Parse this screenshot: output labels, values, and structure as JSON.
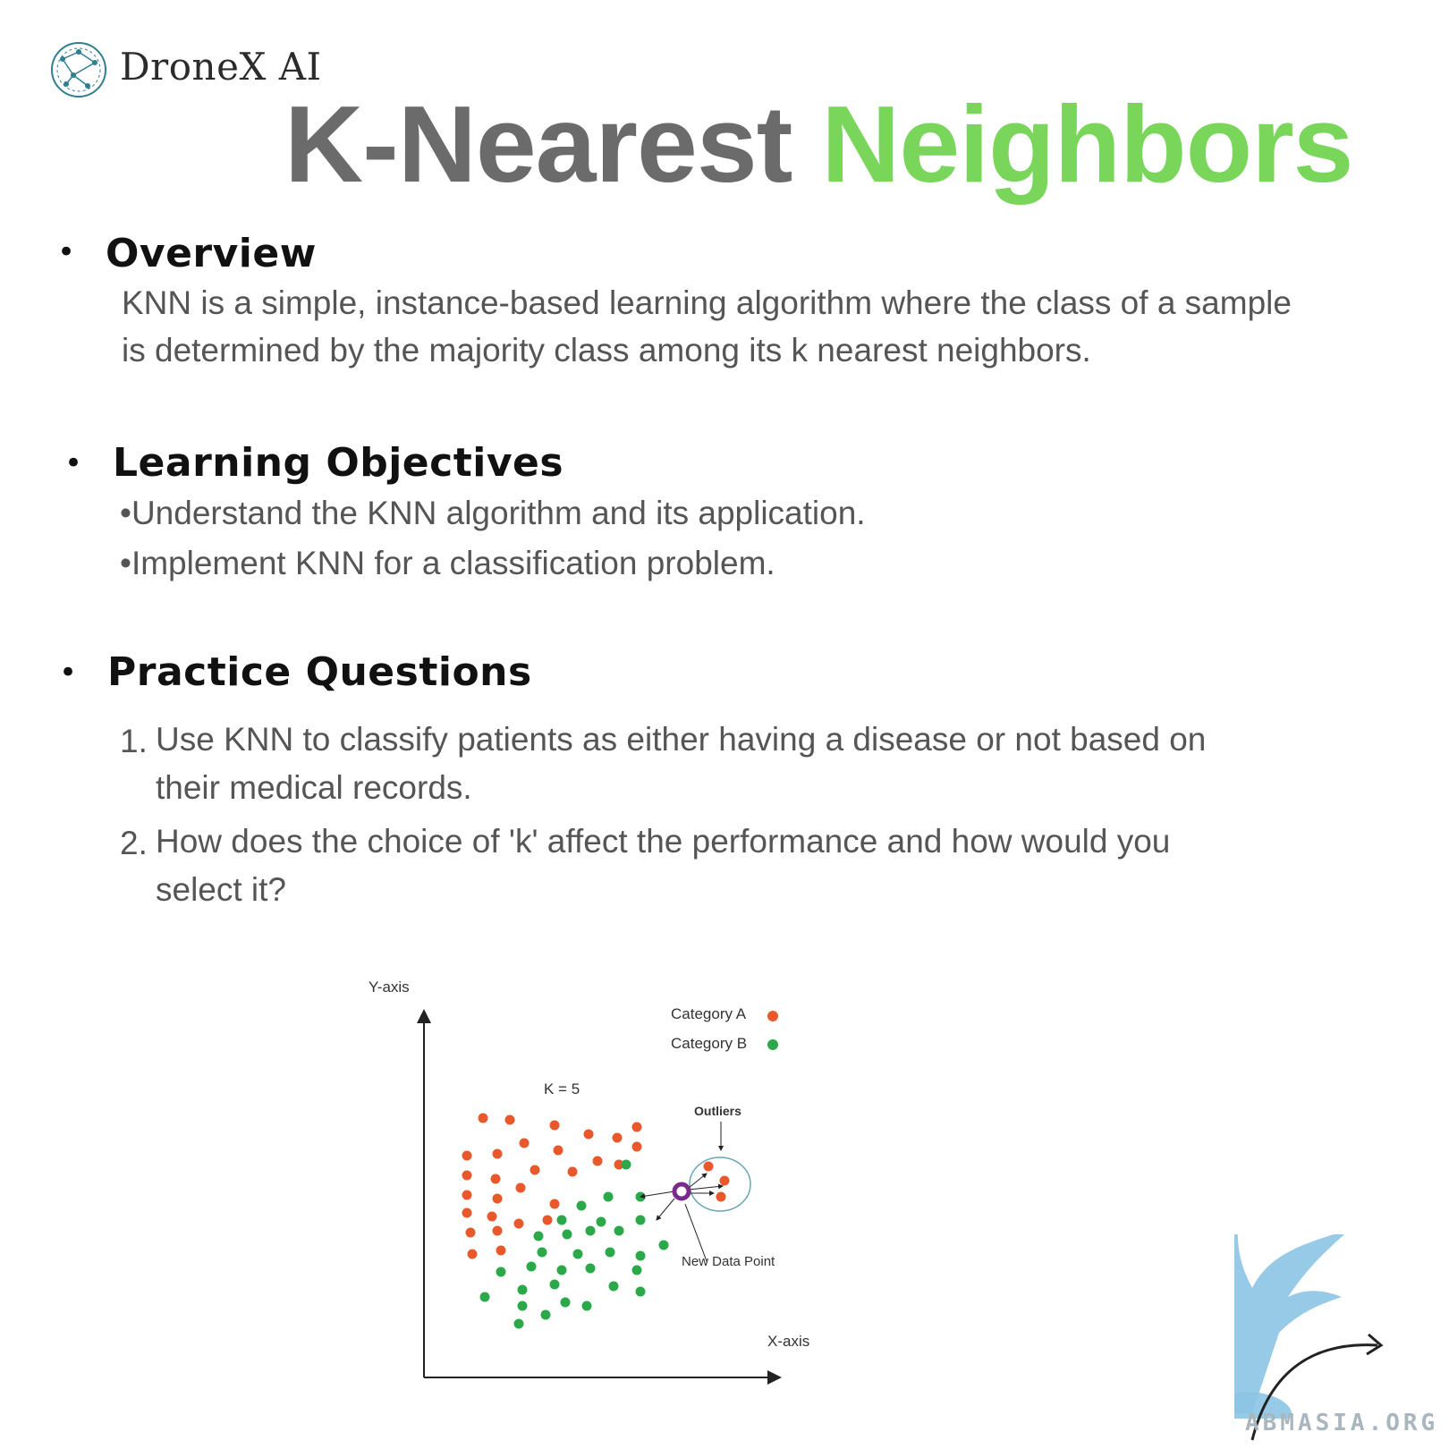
{
  "brand": {
    "name": "DroneX AI",
    "logo_icon": "network-globe-icon"
  },
  "title": {
    "part1": "K-Nearest",
    "part2": "Neighbors",
    "part1_color": "#6b6b6b",
    "part2_color": "#79d65a"
  },
  "sections": {
    "overview": {
      "heading": "Overview",
      "lines": [
        "KNN is a simple, instance-based learning algorithm where the class of a sample",
        "is determined by the majority class among its k nearest neighbors."
      ]
    },
    "objectives": {
      "heading": "Learning Objectives",
      "items": [
        "•Understand the KNN algorithm and its application.",
        "•Implement KNN for a classification problem."
      ]
    },
    "practice": {
      "heading": "Practice Questions",
      "questions": [
        {
          "number": "1.",
          "lines": [
            "Use KNN to classify patients as either having a disease or not based on",
            "their medical records."
          ]
        },
        {
          "number": "2.",
          "lines": [
            "How does the choice of 'k' affect the performance and how would you",
            "select it?"
          ]
        }
      ]
    }
  },
  "figure": {
    "y_axis_label": "Y-axis",
    "x_axis_label": "X-axis",
    "k_label": "K = 5",
    "legend": [
      {
        "label": "Category A",
        "color": "#e8582a"
      },
      {
        "label": "Category B",
        "color": "#2aa84a"
      }
    ],
    "outliers_label": "Outliers",
    "new_point_label": "New Data Point",
    "new_point_color": "#7a2a8c"
  },
  "watermark": {
    "text": "ABMASIA.ORG",
    "icon": "griffin-icon"
  }
}
